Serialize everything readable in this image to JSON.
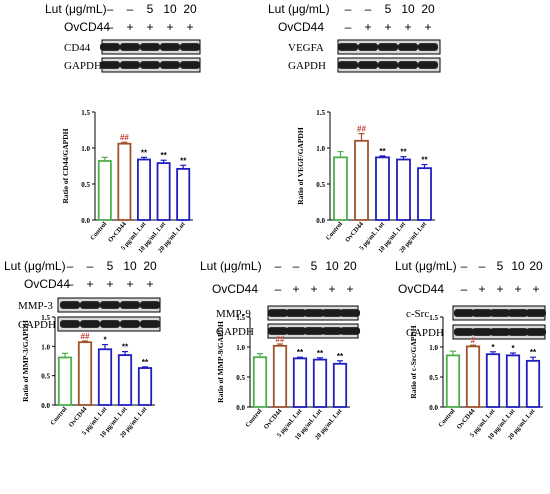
{
  "figure": {
    "lut_label": "Lut (μg/mL)",
    "cell_label": "OvCD44",
    "gapdh_label": "GAPDH",
    "marker_colors": [
      "#4daf4a",
      "#a0522d",
      "#1f1fbf",
      "#1f1fbf",
      "#1f1fbf"
    ],
    "panels": [
      {
        "id": "cd44",
        "lut_doses": [
          "–",
          "–",
          "5",
          "10",
          "20"
        ],
        "cell_signs": [
          "–",
          "+",
          "+",
          "+",
          "+"
        ],
        "protein": "CD44",
        "chart": {
          "ylabel": "Ratio of CD44/GAPDH",
          "categories": [
            "Control",
            "OvCD44",
            "5 μg/mL Lut",
            "10 μg/mL Lut",
            "20 μg/mL Lut"
          ],
          "values": [
            0.82,
            1.06,
            0.84,
            0.79,
            0.71
          ],
          "errors": [
            0.05,
            0.02,
            0.03,
            0.04,
            0.05
          ],
          "labels": [
            "",
            "##",
            "**",
            "**",
            "**"
          ],
          "yticks": [
            "0.0",
            "0.5",
            "1.0",
            "1.5"
          ],
          "ylim": [
            0,
            1.5
          ]
        }
      },
      {
        "id": "vegfa",
        "lut_doses": [
          "–",
          "–",
          "5",
          "10",
          "20"
        ],
        "cell_signs": [
          "–",
          "+",
          "+",
          "+",
          "+"
        ],
        "protein": "VEGFA",
        "chart": {
          "ylabel": "Ratio of VEGF/GAPDH",
          "categories": [
            "Control",
            "OvCD44",
            "5 μg/mL Lut",
            "10 μg/mL Lut",
            "20 μg/mL Lut"
          ],
          "values": [
            0.87,
            1.1,
            0.87,
            0.84,
            0.72
          ],
          "errors": [
            0.08,
            0.1,
            0.02,
            0.04,
            0.05
          ],
          "labels": [
            "",
            "##",
            "**",
            "**",
            "**"
          ],
          "yticks": [
            "0.0",
            "0.5",
            "1.0",
            "1.5"
          ],
          "ylim": [
            0,
            1.5
          ]
        }
      },
      {
        "id": "mmp3",
        "lut_doses": [
          "–",
          "–",
          "5",
          "10",
          "20"
        ],
        "cell_signs": [
          "–",
          "+",
          "+",
          "+",
          "+"
        ],
        "protein": "MMP-3",
        "chart": {
          "ylabel": "Ratio of MMP-3/GAPDH",
          "categories": [
            "Control",
            "OvCD44",
            "5 μg/mL Lut",
            "10 μg/mL Lut",
            "20 μg/mL Lut"
          ],
          "values": [
            0.81,
            1.07,
            0.95,
            0.85,
            0.63
          ],
          "errors": [
            0.07,
            0.02,
            0.08,
            0.06,
            0.02
          ],
          "labels": [
            "",
            "##",
            "*",
            "**",
            "**"
          ],
          "yticks": [
            "0.0",
            "0.5",
            "1.0",
            "1.5"
          ],
          "ylim": [
            0,
            1.5
          ]
        }
      },
      {
        "id": "mmp9",
        "lut_doses": [
          "–",
          "–",
          "5",
          "10",
          "20"
        ],
        "cell_signs": [
          "–",
          "+",
          "+",
          "+",
          "+"
        ],
        "protein": "MMP-9",
        "chart": {
          "ylabel": "Ratio of MMP-9/GAPDH",
          "categories": [
            "Control",
            "OvCD44",
            "5 μg/mL Lut",
            "10 μg/mL Lut",
            "20 μg/mL Lut"
          ],
          "values": [
            0.83,
            1.02,
            0.81,
            0.79,
            0.72
          ],
          "errors": [
            0.06,
            0.03,
            0.02,
            0.03,
            0.05
          ],
          "labels": [
            "",
            "##",
            "**",
            "**",
            "**"
          ],
          "yticks": [
            "0.0",
            "0.5",
            "1.0",
            "1.5"
          ],
          "ylim": [
            0,
            1.5
          ]
        }
      },
      {
        "id": "csrc",
        "lut_doses": [
          "–",
          "–",
          "5",
          "10",
          "20"
        ],
        "cell_signs": [
          "–",
          "+",
          "+",
          "+",
          "+"
        ],
        "protein": "c-Src",
        "chart": {
          "ylabel": "Ratio of c-Src/GAPDH",
          "categories": [
            "Control",
            "OvCD44",
            "5 μg/mL Lut",
            "10 μg/mL Lut",
            "20 μg/mL Lut"
          ],
          "values": [
            0.86,
            1.01,
            0.88,
            0.86,
            0.77
          ],
          "errors": [
            0.07,
            0.02,
            0.04,
            0.04,
            0.06
          ],
          "labels": [
            "",
            "#",
            "*",
            "*",
            "**"
          ],
          "yticks": [
            "0.0",
            "0.5",
            "1.0",
            "1.5"
          ],
          "ylim": [
            0,
            1.5
          ]
        }
      }
    ]
  },
  "chart_data": [
    {
      "type": "bar",
      "categories": [
        "Control",
        "OvCD44",
        "5 μg/mL Lut",
        "10 μg/mL Lut",
        "20 μg/mL Lut"
      ],
      "values": [
        0.82,
        1.06,
        0.84,
        0.79,
        0.71
      ],
      "errors": [
        0.05,
        0.02,
        0.03,
        0.04,
        0.05
      ],
      "annotations": [
        "",
        "##",
        "**",
        "**",
        "**"
      ],
      "title": "",
      "xlabel": "",
      "ylabel": "Ratio of CD44/GAPDH",
      "ylim": [
        0,
        1.5
      ],
      "grid": false
    },
    {
      "type": "bar",
      "categories": [
        "Control",
        "OvCD44",
        "5 μg/mL Lut",
        "10 μg/mL Lut",
        "20 μg/mL Lut"
      ],
      "values": [
        0.87,
        1.1,
        0.87,
        0.84,
        0.72
      ],
      "errors": [
        0.08,
        0.1,
        0.02,
        0.04,
        0.05
      ],
      "annotations": [
        "",
        "##",
        "**",
        "**",
        "**"
      ],
      "title": "",
      "xlabel": "",
      "ylabel": "Ratio of VEGF/GAPDH",
      "ylim": [
        0,
        1.5
      ],
      "grid": false
    },
    {
      "type": "bar",
      "categories": [
        "Control",
        "OvCD44",
        "5 μg/mL Lut",
        "10 μg/mL Lut",
        "20 μg/mL Lut"
      ],
      "values": [
        0.81,
        1.07,
        0.95,
        0.85,
        0.63
      ],
      "errors": [
        0.07,
        0.02,
        0.08,
        0.06,
        0.02
      ],
      "annotations": [
        "",
        "##",
        "*",
        "**",
        "**"
      ],
      "title": "",
      "xlabel": "",
      "ylabel": "Ratio of MMP-3/GAPDH",
      "ylim": [
        0,
        1.5
      ],
      "grid": false
    },
    {
      "type": "bar",
      "categories": [
        "Control",
        "OvCD44",
        "5 μg/mL Lut",
        "10 μg/mL Lut",
        "20 μg/mL Lut"
      ],
      "values": [
        0.83,
        1.02,
        0.81,
        0.79,
        0.72
      ],
      "errors": [
        0.06,
        0.03,
        0.02,
        0.03,
        0.05
      ],
      "annotations": [
        "",
        "##",
        "**",
        "**",
        "**"
      ],
      "title": "",
      "xlabel": "",
      "ylabel": "Ratio of MMP-9/GAPDH",
      "ylim": [
        0,
        1.5
      ],
      "grid": false
    },
    {
      "type": "bar",
      "categories": [
        "Control",
        "OvCD44",
        "5 μg/mL Lut",
        "10 μg/mL Lut",
        "20 μg/mL Lut"
      ],
      "values": [
        0.86,
        1.01,
        0.88,
        0.86,
        0.77
      ],
      "errors": [
        0.07,
        0.02,
        0.04,
        0.04,
        0.06
      ],
      "annotations": [
        "",
        "#",
        "*",
        "*",
        "**"
      ],
      "title": "",
      "xlabel": "",
      "ylabel": "Ratio of c-Src/GAPDH",
      "ylim": [
        0,
        1.5
      ],
      "grid": false
    }
  ]
}
